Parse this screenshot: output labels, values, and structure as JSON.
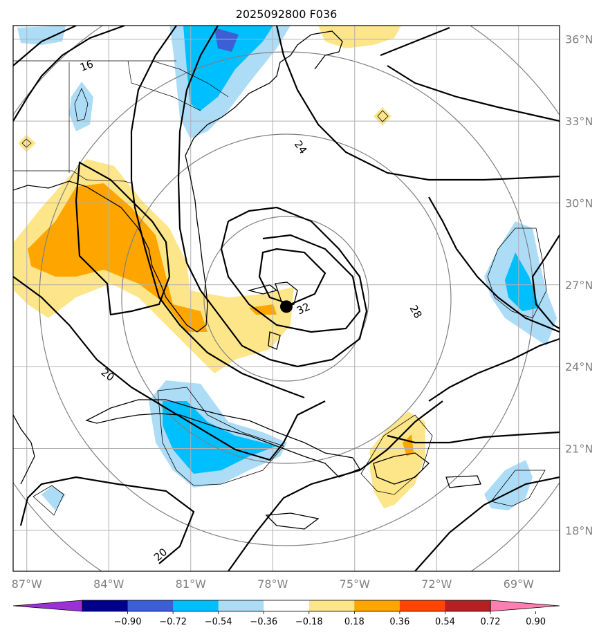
{
  "title": "2025092800 F036",
  "map": {
    "lon_range": [
      -87.5,
      -67.5
    ],
    "lat_range": [
      16.5,
      36.5
    ],
    "lon_ticks": [
      {
        "value": -87,
        "label": "87°W"
      },
      {
        "value": -84,
        "label": "84°W"
      },
      {
        "value": -81,
        "label": "81°W"
      },
      {
        "value": -78,
        "label": "78°W"
      },
      {
        "value": -75,
        "label": "75°W"
      },
      {
        "value": -72,
        "label": "72°W"
      },
      {
        "value": -69,
        "label": "69°W"
      }
    ],
    "lat_ticks": [
      {
        "value": 36,
        "label": "36°N"
      },
      {
        "value": 33,
        "label": "33°N"
      },
      {
        "value": 30,
        "label": "30°N"
      },
      {
        "value": 27,
        "label": "27°N"
      },
      {
        "value": 24,
        "label": "24°N"
      },
      {
        "value": 21,
        "label": "21°N"
      },
      {
        "value": 18,
        "label": "18°N"
      }
    ],
    "grid": true,
    "storm_center": {
      "lon": -77.5,
      "lat": 26.2
    },
    "contour_labels": [
      "16",
      "20",
      "20",
      "24",
      "28",
      "32"
    ],
    "shading_colors": {
      "pos1": "#fde68a",
      "pos2": "#ffa500",
      "neg1": "#addcf7",
      "neg2": "#00bfff",
      "neg3": "#3c5fd6"
    }
  },
  "colorbar": {
    "colors": [
      "#9b30d9",
      "#00008b",
      "#3c5fd6",
      "#00bfff",
      "#addcf7",
      "#ffffff",
      "#fde68a",
      "#ffa500",
      "#ff4500",
      "#b22222",
      "#ff80b0"
    ],
    "ticks": [
      "−0.90",
      "−0.72",
      "−0.54",
      "−0.36",
      "−0.18",
      "0.18",
      "0.36",
      "0.54",
      "0.72",
      "0.90"
    ]
  }
}
